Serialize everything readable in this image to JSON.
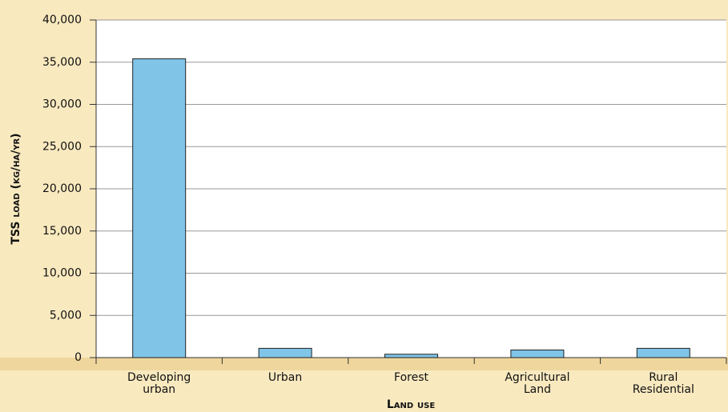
{
  "chart_data": {
    "type": "bar",
    "y_label": "TSS load (kg/ha/yr)",
    "x_label": "Land use",
    "categories": [
      "Developing urban",
      "Urban",
      "Forest",
      "Agricultural Land",
      "Rural Residential"
    ],
    "values": [
      35400,
      1100,
      400,
      900,
      1100
    ],
    "color": "#80c4e8",
    "ylim": [
      0,
      40000
    ],
    "yticks": [
      0,
      {
        "value": 5000,
        "label": "5,000"
      },
      {
        "value": 10000,
        "label": "10,000"
      },
      {
        "value": 15000,
        "label": "15,000"
      },
      {
        "value": 20000,
        "label": "20,000"
      },
      {
        "value": 25000,
        "label": "25,000"
      },
      {
        "value": 30000,
        "label": "30,000"
      },
      {
        "value": 35000,
        "label": "35,000"
      },
      {
        "value": 40000,
        "label": "40,000"
      }
    ],
    "grid": true
  }
}
